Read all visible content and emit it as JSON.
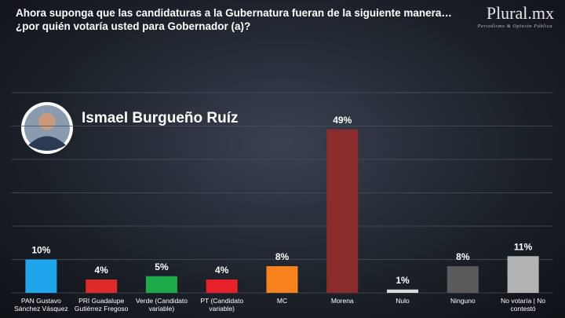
{
  "header": {
    "title": "Ahora suponga que las candidaturas a la Gubernatura fueran de la siguiente manera…¿por quién votaría usted para Gobernador (a)?",
    "logo": "Plural.mx",
    "logo_subtitle": "Periodismo & Opinión Pública"
  },
  "candidate": "Ismael Burgueño Ruíz",
  "chart_data": {
    "type": "bar",
    "categories": [
      "PAN Gustavo Sánchez Vásquez",
      "PRI Guadalupe Gutiérrez Fregoso",
      "Verde (Candidato variable)",
      "PT (Candidato variable)",
      "MC",
      "Morena",
      "Nulo",
      "Ninguno",
      "No votaría | No contestó"
    ],
    "values": [
      10,
      4,
      5,
      4,
      8,
      49,
      1,
      8,
      11
    ],
    "value_labels": [
      "10%",
      "4%",
      "5%",
      "4%",
      "8%",
      "49%",
      "1%",
      "8%",
      "11%"
    ],
    "colors": [
      "#1ea5ec",
      "#e02a2a",
      "#1faa4a",
      "#e8202a",
      "#f7821e",
      "#8b2b2b",
      "#d9d9d9",
      "#5a5a5a",
      "#b3b3b3"
    ],
    "ylim": [
      0,
      60
    ],
    "yticks": [
      0,
      10,
      20,
      30,
      40,
      50,
      60
    ],
    "grid": true
  }
}
